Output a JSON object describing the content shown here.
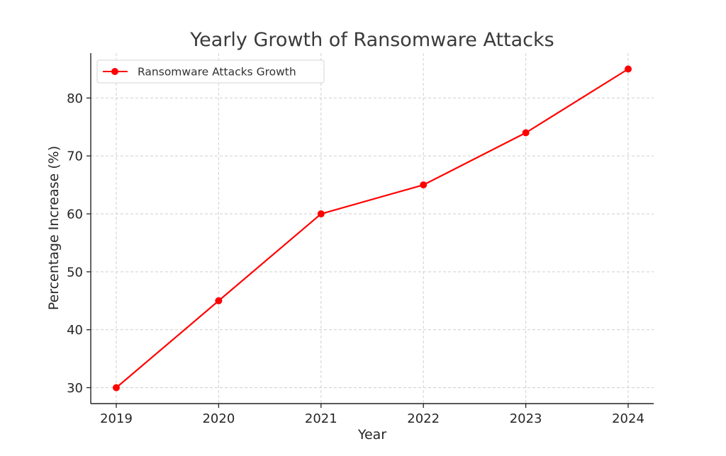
{
  "chart_data": {
    "type": "line",
    "title": "Yearly Growth of Ransomware Attacks",
    "xlabel": "Year",
    "ylabel": "Percentage Increase (%)",
    "x": [
      "2019",
      "2020",
      "2021",
      "2022",
      "2023",
      "2024"
    ],
    "series": [
      {
        "name": "Ransomware Attacks Growth",
        "values": [
          30,
          45,
          60,
          65,
          74,
          85
        ],
        "color": "#ff0000",
        "marker": "circle"
      }
    ],
    "yticks": [
      30,
      40,
      50,
      60,
      70,
      80
    ],
    "ylim": [
      27.25,
      87.75
    ],
    "grid": true,
    "legend": "top-left"
  }
}
